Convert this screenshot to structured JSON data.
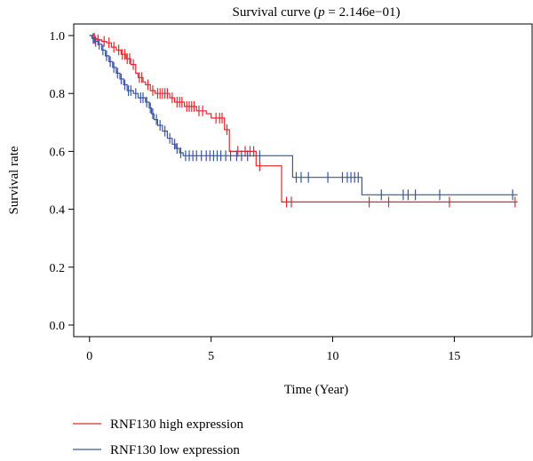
{
  "chart_data": {
    "type": "line",
    "title": "Survival curve (p = 2.146e−01)",
    "title_prefix": "Survival curve (",
    "title_p": "p",
    "title_suffix": " = 2.146e−01)",
    "xlabel": "Time (Year)",
    "ylabel": "Survival rate",
    "xlim": [
      -0.65,
      18.2
    ],
    "ylim": [
      -0.04,
      1.04
    ],
    "x_ticks": [
      0,
      5,
      10,
      15
    ],
    "x_tick_labels": [
      "0",
      "5",
      "10",
      "15"
    ],
    "y_ticks": [
      0.0,
      0.2,
      0.4,
      0.6,
      0.8,
      1.0
    ],
    "y_tick_labels": [
      "0.0",
      "0.2",
      "0.4",
      "0.6",
      "0.8",
      "1.0"
    ],
    "grid": false,
    "legend_position": "bottom-left",
    "series": [
      {
        "name": "RNF130 high expression",
        "color": "#e8262b",
        "steps": [
          [
            0,
            1.0
          ],
          [
            0.15,
            0.99
          ],
          [
            0.3,
            0.985
          ],
          [
            0.5,
            0.98
          ],
          [
            0.7,
            0.975
          ],
          [
            0.9,
            0.96
          ],
          [
            1.1,
            0.95
          ],
          [
            1.3,
            0.935
          ],
          [
            1.5,
            0.92
          ],
          [
            1.7,
            0.9
          ],
          [
            1.9,
            0.87
          ],
          [
            2.0,
            0.855
          ],
          [
            2.2,
            0.84
          ],
          [
            2.3,
            0.83
          ],
          [
            2.5,
            0.81
          ],
          [
            2.7,
            0.8
          ],
          [
            3.3,
            0.785
          ],
          [
            3.5,
            0.77
          ],
          [
            3.9,
            0.755
          ],
          [
            4.4,
            0.74
          ],
          [
            4.8,
            0.73
          ],
          [
            5.0,
            0.715
          ],
          [
            5.55,
            0.675
          ],
          [
            5.75,
            0.6
          ],
          [
            6.85,
            0.55
          ],
          [
            7.9,
            0.425
          ],
          [
            17.6,
            0.425
          ]
        ],
        "censor_x": [
          0.2,
          0.35,
          0.6,
          0.8,
          1.0,
          1.2,
          1.35,
          1.45,
          1.55,
          1.65,
          1.8,
          2.05,
          2.15,
          2.4,
          2.6,
          2.8,
          2.9,
          3.0,
          3.1,
          3.2,
          3.4,
          3.6,
          3.7,
          3.8,
          4.0,
          4.1,
          4.2,
          4.3,
          4.5,
          4.65,
          5.2,
          5.35,
          5.45,
          5.65,
          6.1,
          6.4,
          6.6,
          6.75,
          7.0,
          8.1,
          8.3,
          11.5,
          12.3,
          14.8,
          17.5
        ]
      },
      {
        "name": "RNF130 low expression",
        "color": "#3a54a4",
        "steps": [
          [
            0,
            1.0
          ],
          [
            0.1,
            0.99
          ],
          [
            0.2,
            0.98
          ],
          [
            0.35,
            0.97
          ],
          [
            0.5,
            0.95
          ],
          [
            0.65,
            0.93
          ],
          [
            0.8,
            0.91
          ],
          [
            0.95,
            0.89
          ],
          [
            1.1,
            0.87
          ],
          [
            1.25,
            0.85
          ],
          [
            1.4,
            0.83
          ],
          [
            1.55,
            0.81
          ],
          [
            1.8,
            0.8
          ],
          [
            2.0,
            0.785
          ],
          [
            2.3,
            0.77
          ],
          [
            2.45,
            0.75
          ],
          [
            2.55,
            0.73
          ],
          [
            2.65,
            0.71
          ],
          [
            2.8,
            0.69
          ],
          [
            3.0,
            0.67
          ],
          [
            3.2,
            0.645
          ],
          [
            3.4,
            0.625
          ],
          [
            3.55,
            0.61
          ],
          [
            3.7,
            0.595
          ],
          [
            3.85,
            0.585
          ],
          [
            8.35,
            0.51
          ],
          [
            11.2,
            0.45
          ],
          [
            17.6,
            0.45
          ]
        ],
        "censor_x": [
          0.15,
          0.25,
          0.4,
          0.55,
          0.7,
          0.85,
          1.0,
          1.15,
          1.3,
          1.45,
          1.6,
          1.7,
          1.9,
          2.1,
          2.2,
          2.35,
          2.5,
          2.6,
          2.75,
          2.9,
          3.1,
          3.3,
          3.5,
          3.6,
          3.75,
          3.95,
          4.1,
          4.25,
          4.4,
          4.6,
          4.8,
          4.95,
          5.1,
          5.25,
          5.4,
          5.6,
          5.8,
          6.05,
          6.25,
          6.5,
          7.0,
          8.5,
          8.7,
          9.0,
          9.8,
          10.4,
          10.6,
          10.75,
          10.9,
          11.05,
          12.0,
          12.9,
          13.1,
          13.4,
          14.4,
          17.4
        ]
      }
    ]
  }
}
